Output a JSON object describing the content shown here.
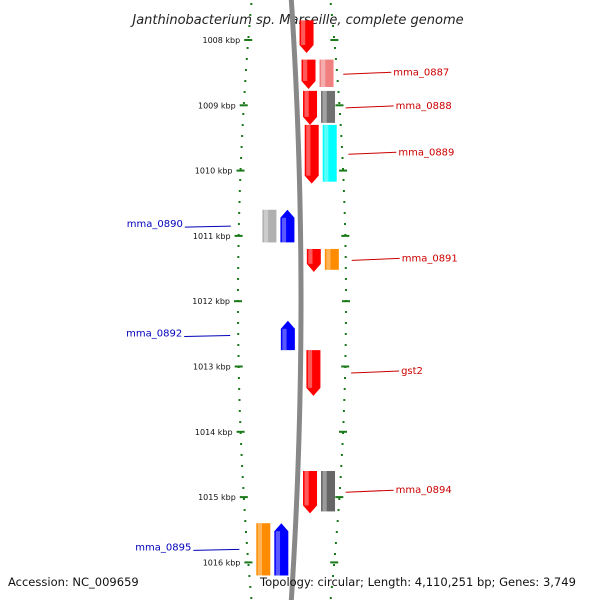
{
  "title": "Janthinobacterium sp. Marseille, complete genome",
  "accession": "Accession: NC_009659",
  "topology": "Topology: circular; Length: 4,110,251 bp; Genes: 3,749",
  "axis": {
    "unit": "kbp",
    "ticks": [
      {
        "value": 1008,
        "label": "1008 kbp"
      },
      {
        "value": 1009,
        "label": "1009 kbp"
      },
      {
        "value": 1010,
        "label": "1010 kbp"
      },
      {
        "value": 1011,
        "label": "1011 kbp"
      },
      {
        "value": 1012,
        "label": "1012 kbp"
      },
      {
        "value": 1013,
        "label": "1013 kbp"
      },
      {
        "value": 1014,
        "label": "1014 kbp"
      },
      {
        "value": 1015,
        "label": "1015 kbp"
      },
      {
        "value": 1016,
        "label": "1016 kbp"
      }
    ]
  },
  "colors": {
    "forward_label": "#cc0000",
    "reverse_label": "#0000bb",
    "ticks": "#1a7a1a",
    "backbone": "#888888"
  },
  "genes": [
    {
      "label": "",
      "strand": "+",
      "start_kbp": 1007.7,
      "end_kbp": 1008.2,
      "cds_color": "#ff0000",
      "hit_color": ""
    },
    {
      "label": "mma_0887",
      "strand": "+",
      "start_kbp": 1008.3,
      "end_kbp": 1008.75,
      "cds_color": "#ff0000",
      "hit_color": "#f08080"
    },
    {
      "label": "mma_0888",
      "strand": "+",
      "start_kbp": 1008.78,
      "end_kbp": 1009.3,
      "cds_color": "#ff0000",
      "hit_color": "#707070"
    },
    {
      "label": "mma_0889",
      "strand": "+",
      "start_kbp": 1009.3,
      "end_kbp": 1010.2,
      "cds_color": "#ff0000",
      "hit_color": "#00ffff"
    },
    {
      "label": "mma_0890",
      "strand": "-",
      "start_kbp": 1010.6,
      "end_kbp": 1011.1,
      "cds_color": "#0000ff",
      "hit_color": "#b0b0b0"
    },
    {
      "label": "mma_0891",
      "strand": "+",
      "start_kbp": 1011.2,
      "end_kbp": 1011.55,
      "cds_color": "#ff0000",
      "hit_color": "#ff8c00"
    },
    {
      "label": "mma_0892",
      "strand": "-",
      "start_kbp": 1012.3,
      "end_kbp": 1012.75,
      "cds_color": "#0000ff",
      "hit_color": ""
    },
    {
      "label": "gst2",
      "strand": "+",
      "start_kbp": 1012.75,
      "end_kbp": 1013.45,
      "cds_color": "#ff0000",
      "hit_color": ""
    },
    {
      "label": "mma_0894",
      "strand": "+",
      "start_kbp": 1014.6,
      "end_kbp": 1015.25,
      "cds_color": "#ff0000",
      "hit_color": "#666666"
    },
    {
      "label": "mma_0895",
      "strand": "-",
      "start_kbp": 1015.4,
      "end_kbp": 1016.2,
      "cds_color": "#0000ff",
      "hit_color": "#ff8c00"
    }
  ]
}
